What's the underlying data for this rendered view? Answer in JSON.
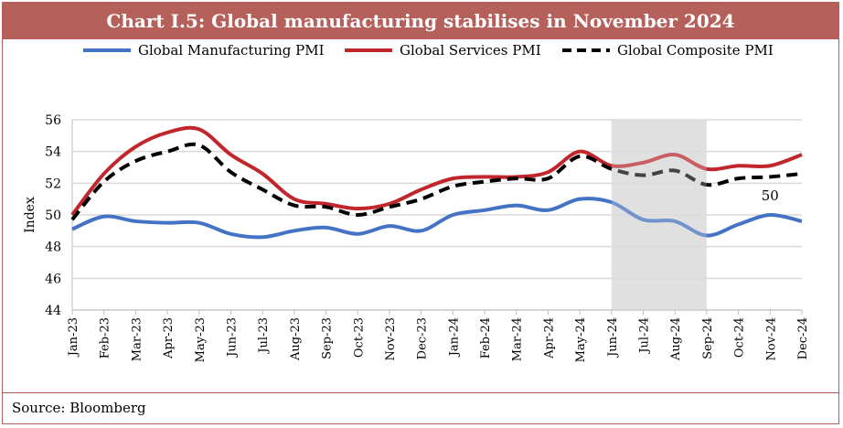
{
  "chart_data": {
    "type": "line",
    "title": "Chart I.5: Global manufacturing stabilises in November 2024",
    "ylabel": "Index",
    "xlabel": "",
    "ylim": [
      44,
      56
    ],
    "yticks": [
      44,
      46,
      48,
      50,
      52,
      54,
      56
    ],
    "grid": true,
    "legend_position": "top",
    "categories": [
      "Jan-23",
      "Feb-23",
      "Mar-23",
      "Apr-23",
      "May-23",
      "Jun-23",
      "Jul-23",
      "Aug-23",
      "Sep-23",
      "Oct-23",
      "Nov-23",
      "Dec-23",
      "Jan-24",
      "Feb-24",
      "Mar-24",
      "Apr-24",
      "May-24",
      "Jun-24",
      "Jul-24",
      "Aug-24",
      "Sep-24",
      "Oct-24",
      "Nov-24",
      "Dec-24"
    ],
    "series": [
      {
        "name": "Global Manufacturing PMI",
        "color": "#4472c4",
        "style": "solid",
        "values": [
          49.1,
          49.9,
          49.6,
          49.5,
          49.5,
          48.8,
          48.6,
          49.0,
          49.2,
          48.8,
          49.3,
          49.0,
          50.0,
          50.3,
          50.6,
          50.3,
          51.0,
          50.8,
          49.7,
          49.6,
          48.7,
          49.4,
          50.0,
          49.6
        ]
      },
      {
        "name": "Global Services PMI",
        "color": "#c0262c",
        "style": "solid",
        "values": [
          50.0,
          52.6,
          54.3,
          55.2,
          55.4,
          53.8,
          52.6,
          51.0,
          50.7,
          50.4,
          50.7,
          51.6,
          52.3,
          52.4,
          52.4,
          52.7,
          54.0,
          53.1,
          53.3,
          53.8,
          52.9,
          53.1,
          53.1,
          53.8
        ]
      },
      {
        "name": "Global Composite PMI",
        "color": "#000000",
        "style": "dashed",
        "values": [
          49.7,
          52.1,
          53.4,
          54.0,
          54.4,
          52.7,
          51.6,
          50.6,
          50.5,
          50.0,
          50.5,
          51.0,
          51.8,
          52.1,
          52.3,
          52.3,
          53.7,
          52.9,
          52.5,
          52.8,
          51.9,
          52.3,
          52.4,
          52.6
        ]
      }
    ],
    "shaded_range": [
      "Jun-24",
      "Sep-24"
    ],
    "annotations": [
      {
        "text": "50",
        "x": "Nov-24",
        "series": "Global Manufacturing PMI"
      }
    ]
  },
  "source": "Source: Bloomberg"
}
